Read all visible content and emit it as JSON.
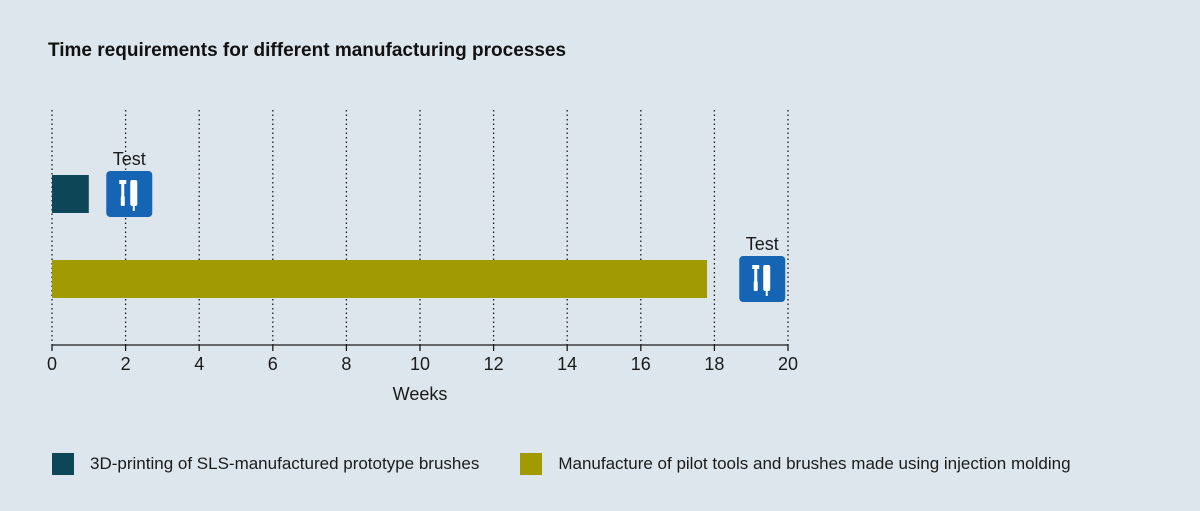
{
  "chart_data": {
    "type": "bar",
    "title": "Time requirements for different manufacturing processes",
    "xlabel": "Weeks",
    "xlim": [
      0,
      20
    ],
    "x_ticks": [
      0,
      2,
      4,
      6,
      8,
      10,
      12,
      14,
      16,
      18,
      20
    ],
    "gridlines": true,
    "orientation": "horizontal",
    "series": [
      {
        "name": "3D-printing of SLS-manufactured prototype brushes",
        "start": 0,
        "end": 1,
        "color": "#0d4656",
        "milestone": {
          "label": "Test",
          "x": 2.1,
          "icon": "mascara-brush-icon"
        }
      },
      {
        "name": "Manufacture of pilot tools and brushes made using injection molding",
        "start": 0,
        "end": 17.8,
        "color": "#a19a00",
        "milestone": {
          "label": "Test",
          "x": 19.3,
          "icon": "mascara-brush-icon"
        }
      }
    ],
    "legend_position": "bottom",
    "icon_color": "#1565b4"
  }
}
